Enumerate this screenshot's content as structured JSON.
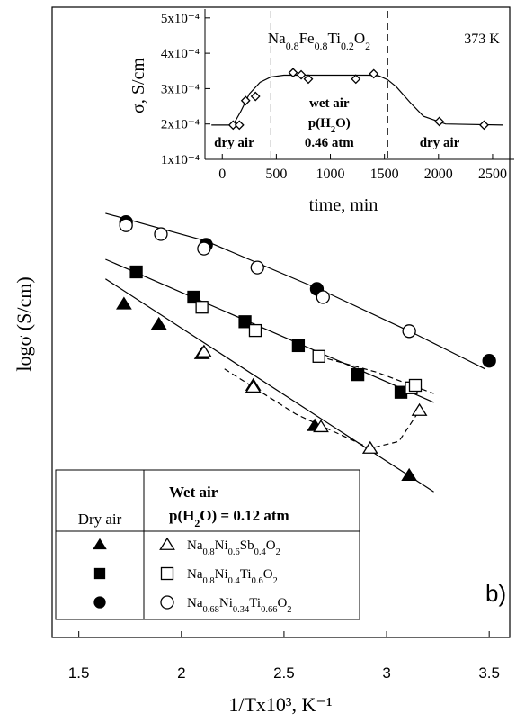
{
  "chart_data": {
    "type": "scatter",
    "y_label": "logσ (S/cm)",
    "x_label": "1/Tx10³, K⁻¹",
    "panel_label": "b)",
    "xlim": [
      1.37,
      3.6
    ],
    "xticks": [
      1.5,
      2,
      2.5,
      3,
      3.5
    ],
    "ylim": [
      0,
      100
    ],
    "legend": {
      "dry_header": "Dry air",
      "wet_header": "Wet air",
      "wet_condition": [
        {
          "text": "p(H"
        },
        {
          "sub": "2"
        },
        {
          "text": "O) = 0.12 atm"
        }
      ]
    },
    "compounds": [
      {
        "name": [
          {
            "text": "Na"
          },
          {
            "sub": "0.8"
          },
          {
            "text": "Ni"
          },
          {
            "sub": "0.6"
          },
          {
            "text": "Sb"
          },
          {
            "sub": "0.4"
          },
          {
            "text": "O"
          },
          {
            "sub": "2"
          }
        ],
        "marker": "triangle",
        "color": "#000000",
        "dry": {
          "x": [
            1.72,
            1.89,
            2.1,
            2.35,
            2.65,
            3.11
          ],
          "y": [
            52.9,
            49.7,
            45.0,
            40.0,
            33.6,
            25.7
          ]
        },
        "wet": {
          "x": [
            2.11,
            2.35,
            2.68,
            2.92,
            3.16
          ],
          "y": [
            45.3,
            39.7,
            33.4,
            30.0,
            36.0
          ]
        },
        "fit": {
          "x": [
            1.63,
            3.23
          ],
          "y": [
            56.9,
            23.1
          ]
        },
        "wet_fit": {
          "x": [
            2.21,
            2.56,
            2.92,
            3.06,
            3.16
          ],
          "y": [
            42.6,
            35.4,
            30.0,
            31.1,
            36.0
          ]
        }
      },
      {
        "name": [
          {
            "text": "Na"
          },
          {
            "sub": "0.8"
          },
          {
            "text": "Ni"
          },
          {
            "sub": "0.4"
          },
          {
            "text": "Ti"
          },
          {
            "sub": "0.6"
          },
          {
            "text": "O"
          },
          {
            "sub": "2"
          }
        ],
        "marker": "square",
        "color": "#000000",
        "dry": {
          "x": [
            1.78,
            2.06,
            2.31,
            2.57,
            2.86,
            3.07
          ],
          "y": [
            58.0,
            54.0,
            50.1,
            46.3,
            41.7,
            38.9
          ]
        },
        "wet": {
          "x": [
            2.1,
            2.36,
            2.67,
            3.12,
            3.14
          ],
          "y": [
            52.4,
            48.7,
            44.6,
            39.6,
            40.0
          ]
        },
        "fit": {
          "x": [
            1.63,
            3.23
          ],
          "y": [
            60.0,
            37.3
          ]
        },
        "wet_fit": {
          "x": [
            2.67,
            2.95,
            3.23
          ],
          "y": [
            44.6,
            42.1,
            38.7
          ]
        }
      },
      {
        "name": [
          {
            "text": "Na"
          },
          {
            "sub": "0.68"
          },
          {
            "text": "Ni"
          },
          {
            "sub": "0.34"
          },
          {
            "text": "Ti"
          },
          {
            "sub": "0.66"
          },
          {
            "text": "O"
          },
          {
            "sub": "2"
          }
        ],
        "marker": "circle",
        "color": "#000000",
        "dry": {
          "x": [
            1.73,
            2.12,
            2.66,
            3.5
          ],
          "y": [
            65.9,
            62.3,
            55.3,
            43.9
          ]
        },
        "wet": {
          "x": [
            1.73,
            1.9,
            2.11,
            2.37,
            2.69,
            3.11
          ],
          "y": [
            65.4,
            64.0,
            61.7,
            58.7,
            54.0,
            48.6
          ]
        },
        "fit": {
          "x": [
            1.63,
            2.12,
            2.69,
            3.13,
            3.48
          ],
          "y": [
            67.3,
            62.9,
            55.0,
            48.3,
            42.6
          ]
        }
      }
    ],
    "inset": {
      "type": "line",
      "y_label": "σ, S/cm",
      "x_label": "time, min",
      "xlim": [
        -160,
        2700
      ],
      "xticks": [
        0,
        500,
        1000,
        1500,
        2000,
        2500
      ],
      "ylim": [
        0.0001,
        0.000525
      ],
      "yticks": [
        {
          "value": 0.0001,
          "label": "1x10⁻⁴"
        },
        {
          "value": 0.0002,
          "label": "2x10⁻⁴"
        },
        {
          "value": 0.0003,
          "label": "3x10⁻⁴"
        },
        {
          "value": 0.0004,
          "label": "4x10⁻⁴"
        },
        {
          "value": 0.0005,
          "label": "5x10⁻⁴"
        }
      ],
      "formula": [
        {
          "text": "Na"
        },
        {
          "sub": "0.8"
        },
        {
          "text": "Fe"
        },
        {
          "sub": "0.8"
        },
        {
          "text": "Ti"
        },
        {
          "sub": "0.2"
        },
        {
          "text": "O"
        },
        {
          "sub": "2"
        }
      ],
      "temperature": "373 K",
      "dividers": [
        450,
        1530
      ],
      "regions": [
        {
          "x": 110,
          "lines": [
            [
              {
                "text": "dry air"
              }
            ]
          ]
        },
        {
          "x": 990,
          "lines": [
            [
              {
                "text": "wet air"
              }
            ],
            [
              {
                "text": "p(H"
              },
              {
                "sub": "2"
              },
              {
                "text": "O)"
              }
            ],
            [
              {
                "text": "0.46 atm"
              }
            ]
          ]
        },
        {
          "x": 2010,
          "lines": [
            [
              {
                "text": "dry air"
              }
            ]
          ]
        }
      ],
      "x": [
        100,
        158,
        216,
        307,
        655,
        730,
        796,
        1235,
        1401,
        2007,
        2421
      ],
      "values": [
        0.000197,
        0.000197,
        0.000266,
        0.000278,
        0.000345,
        0.000339,
        0.000327,
        0.000327,
        0.000342,
        0.000207,
        0.000197
      ],
      "fit": {
        "x": [
          -100,
          100,
          170,
          250,
          350,
          450,
          570,
          1360,
          1450,
          1530,
          1610,
          1740,
          1860,
          2065,
          2600
        ],
        "y": [
          0.000197,
          0.000197,
          0.000235,
          0.000285,
          0.000318,
          0.000333,
          0.000338,
          0.000338,
          0.000336,
          0.000325,
          0.000305,
          0.00026,
          0.000222,
          0.0002,
          0.000197
        ]
      }
    }
  }
}
